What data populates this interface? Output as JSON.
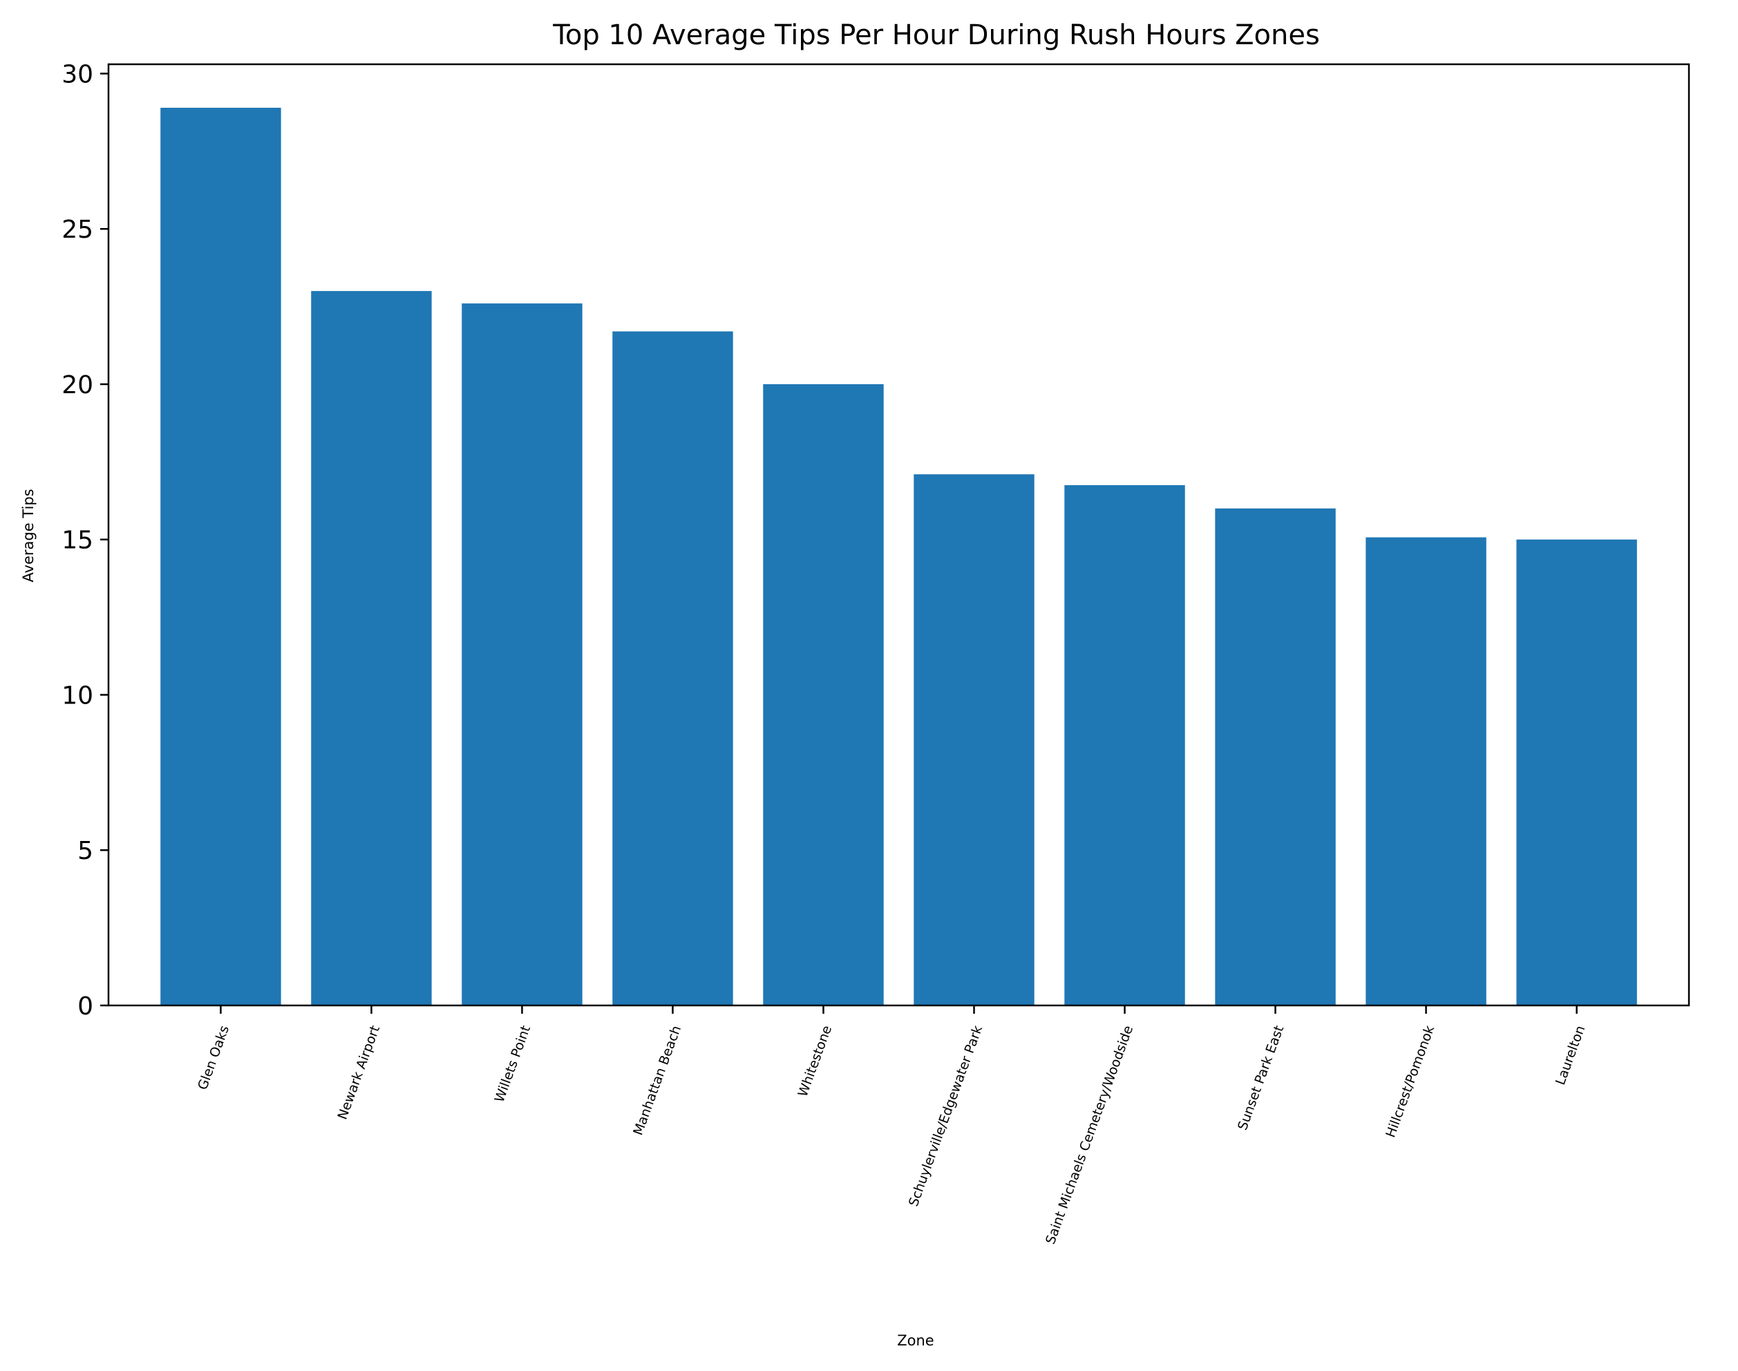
{
  "chart_data": {
    "type": "bar",
    "title": "Top 10 Average Tips Per Hour During Rush Hours Zones",
    "xlabel": "Zone",
    "ylabel": "Average Tips",
    "categories": [
      "Glen Oaks",
      "Newark Airport",
      "Willets Point",
      "Manhattan Beach",
      "Whitestone",
      "Schuylerville/Edgewater Park",
      "Saint Michaels Cemetery/Woodside",
      "Sunset Park East",
      "Hillcrest/Pomonok",
      "Laurelton"
    ],
    "values": [
      28.9,
      23.0,
      22.6,
      21.7,
      20.0,
      17.1,
      16.75,
      16.0,
      15.07,
      15.0
    ],
    "ylim": [
      0,
      30.3
    ],
    "yticks": [
      0,
      5,
      10,
      15,
      20,
      25,
      30
    ],
    "bar_color": "#1f77b4",
    "grid": false,
    "legend": "none"
  }
}
